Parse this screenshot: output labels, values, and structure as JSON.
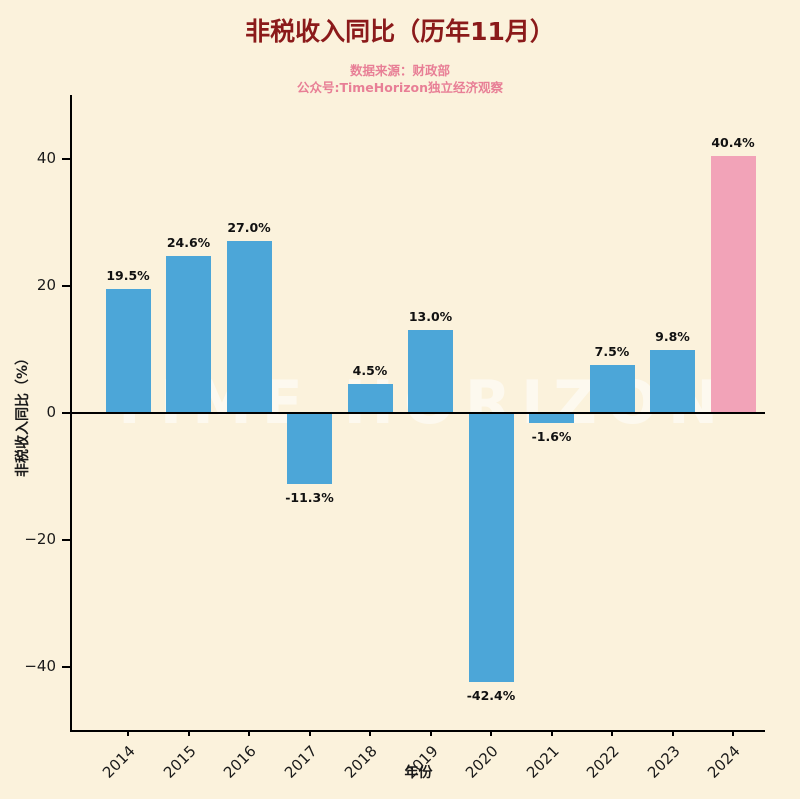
{
  "title": "非税收入同比（历年11月）",
  "subtitle_line1": "数据来源：财政部",
  "subtitle_line2": "公众号:TimeHorizon独立经济观察",
  "watermark": "TIME HORIZON",
  "colors": {
    "background": "#fbf2dc",
    "title": "#8b1a1a",
    "subtitle": "#e87f96",
    "axis": "#000000"
  },
  "chart_data": {
    "type": "bar",
    "title": "非税收入同比（历年11月）",
    "categories": [
      "2014",
      "2015",
      "2016",
      "2017",
      "2018",
      "2019",
      "2020",
      "2021",
      "2022",
      "2023",
      "2024"
    ],
    "values": [
      19.5,
      24.6,
      27.0,
      -11.3,
      4.5,
      13.0,
      -42.4,
      -1.6,
      7.5,
      9.8,
      40.4
    ],
    "labels": [
      "19.5%",
      "24.6%",
      "27.0%",
      "-11.3%",
      "4.5%",
      "13.0%",
      "-42.4%",
      "-1.6%",
      "7.5%",
      "9.8%",
      "40.4%"
    ],
    "xlabel": "年份",
    "ylabel": "非税收入同比（%）",
    "ylim": [
      -50,
      50
    ],
    "yticks": [
      -40,
      -20,
      0,
      20,
      40
    ],
    "ytick_labels": [
      "−40",
      "−20",
      "0",
      "20",
      "40"
    ],
    "bar_color": "#4ca6d8",
    "highlight_color": "#f2a3b8",
    "highlight_index": 10,
    "grid": false,
    "legend": false
  }
}
